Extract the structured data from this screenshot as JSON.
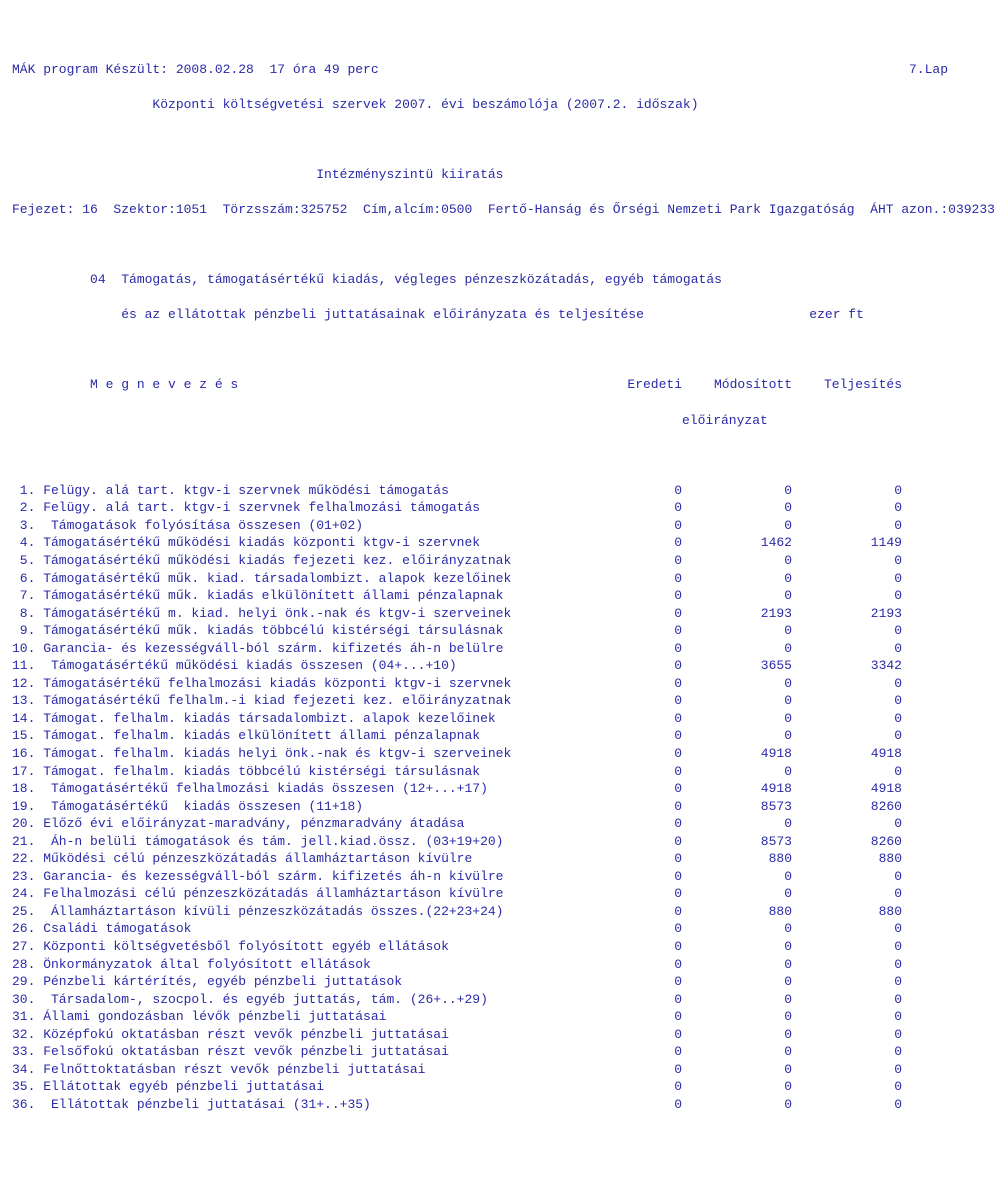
{
  "hdr": {
    "l1l": "MÁK program Készült: 2008.02.28  17 óra 49 perc",
    "l1r": "7.Lap",
    "l2": "                  Központi költségvetési szervek 2007. évi beszámolója (2007.2. időszak)",
    "l3": "                                       Intézményszintü kiiratás",
    "l4": "Fejezet: 16  Szektor:1051  Törzsszám:325752  Cím,alcím:0500  Fertő-Hanság és Őrségi Nemzeti Park Igazgatóság  ÁHT azon.:039233"
  },
  "sec": {
    "t1": "          04  Támogatás, támogatásértékű kiadás, végleges pénzeszközátadás, egyéb támogatás",
    "t2a": "              és az ellátottak pénzbeli juttatásainak előirányzata és teljesítése",
    "t2b": "ezer ft",
    "h1": "          M e g n e v e z é s",
    "h_er": "Eredeti",
    "h_mo": "Módosított",
    "h_te": "Teljesítés",
    "h_ei": "előirányzat"
  },
  "rows": [
    {
      "l": " 1. Felügy. alá tart. ktgv-i szervnek működési támogatás",
      "a": "0",
      "b": "0",
      "c": "0"
    },
    {
      "l": " 2. Felügy. alá tart. ktgv-i szervnek felhalmozási támogatás",
      "a": "0",
      "b": "0",
      "c": "0"
    },
    {
      "l": " 3.  Támogatások folyósítása összesen (01+02)",
      "a": "0",
      "b": "0",
      "c": "0"
    },
    {
      "l": " 4. Támogatásértékű működési kiadás központi ktgv-i szervnek",
      "a": "0",
      "b": "1462",
      "c": "1149"
    },
    {
      "l": " 5. Támogatásértékű működési kiadás fejezeti kez. előirányzatnak",
      "a": "0",
      "b": "0",
      "c": "0"
    },
    {
      "l": " 6. Támogatásértékű műk. kiad. társadalombizt. alapok kezelőinek",
      "a": "0",
      "b": "0",
      "c": "0"
    },
    {
      "l": " 7. Támogatásértékű műk. kiadás elkülönített állami pénzalapnak",
      "a": "0",
      "b": "0",
      "c": "0"
    },
    {
      "l": " 8. Támogatásértékű m. kiad. helyi önk.-nak és ktgv-i szerveinek",
      "a": "0",
      "b": "2193",
      "c": "2193"
    },
    {
      "l": " 9. Támogatásértékű műk. kiadás többcélú kistérségi társulásnak",
      "a": "0",
      "b": "0",
      "c": "0"
    },
    {
      "l": "10. Garancia- és kezességváll-ból szárm. kifizetés áh-n belülre",
      "a": "0",
      "b": "0",
      "c": "0"
    },
    {
      "l": "11.  Támogatásértékű működési kiadás összesen (04+...+10)",
      "a": "0",
      "b": "3655",
      "c": "3342"
    },
    {
      "l": "12. Támogatásértékű felhalmozási kiadás központi ktgv-i szervnek",
      "a": "0",
      "b": "0",
      "c": "0"
    },
    {
      "l": "13. Támogatásértékű felhalm.-i kiad fejezeti kez. előirányzatnak",
      "a": "0",
      "b": "0",
      "c": "0"
    },
    {
      "l": "14. Támogat. felhalm. kiadás társadalombizt. alapok kezelőinek",
      "a": "0",
      "b": "0",
      "c": "0"
    },
    {
      "l": "15. Támogat. felhalm. kiadás elkülönített állami pénzalapnak",
      "a": "0",
      "b": "0",
      "c": "0"
    },
    {
      "l": "16. Támogat. felhalm. kiadás helyi önk.-nak és ktgv-i szerveinek",
      "a": "0",
      "b": "4918",
      "c": "4918"
    },
    {
      "l": "17. Támogat. felhalm. kiadás többcélú kistérségi társulásnak",
      "a": "0",
      "b": "0",
      "c": "0"
    },
    {
      "l": "18.  Támogatásértékű felhalmozási kiadás összesen (12+...+17)",
      "a": "0",
      "b": "4918",
      "c": "4918"
    },
    {
      "l": "19.  Támogatásértékű  kiadás összesen (11+18)",
      "a": "0",
      "b": "8573",
      "c": "8260"
    },
    {
      "l": "20. Előző évi előirányzat-maradvány, pénzmaradvány átadása",
      "a": "0",
      "b": "0",
      "c": "0"
    },
    {
      "l": "21.  Áh-n belüli támogatások és tám. jell.kiad.össz. (03+19+20)",
      "a": "0",
      "b": "8573",
      "c": "8260"
    },
    {
      "l": "22. Működési célú pénzeszközátadás államháztartáson kívülre",
      "a": "0",
      "b": "880",
      "c": "880"
    },
    {
      "l": "23. Garancia- és kezességváll-ból szárm. kifizetés áh-n kívülre",
      "a": "0",
      "b": "0",
      "c": "0"
    },
    {
      "l": "24. Felhalmozási célú pénzeszközátadás államháztartáson kívülre",
      "a": "0",
      "b": "0",
      "c": "0"
    },
    {
      "l": "25.  Államháztartáson kívüli pénzeszközátadás összes.(22+23+24)",
      "a": "0",
      "b": "880",
      "c": "880"
    },
    {
      "l": "26. Családi támogatások",
      "a": "0",
      "b": "0",
      "c": "0"
    },
    {
      "l": "27. Központi költségvetésből folyósított egyéb ellátások",
      "a": "0",
      "b": "0",
      "c": "0"
    },
    {
      "l": "28. Önkormányzatok által folyósított ellátások",
      "a": "0",
      "b": "0",
      "c": "0"
    },
    {
      "l": "29. Pénzbeli kártérítés, egyéb pénzbeli juttatások",
      "a": "0",
      "b": "0",
      "c": "0"
    },
    {
      "l": "30.  Társadalom-, szocpol. és egyéb juttatás, tám. (26+..+29)",
      "a": "0",
      "b": "0",
      "c": "0"
    },
    {
      "l": "31. Állami gondozásban lévők pénzbeli juttatásai",
      "a": "0",
      "b": "0",
      "c": "0"
    },
    {
      "l": "32. Középfokú oktatásban részt vevők pénzbeli juttatásai",
      "a": "0",
      "b": "0",
      "c": "0"
    },
    {
      "l": "33. Felsőfokú oktatásban részt vevők pénzbeli juttatásai",
      "a": "0",
      "b": "0",
      "c": "0"
    },
    {
      "l": "34. Felnőttoktatásban részt vevők pénzbeli juttatásai",
      "a": "0",
      "b": "0",
      "c": "0"
    },
    {
      "l": "35. Ellátottak egyéb pénzbeli juttatásai",
      "a": "0",
      "b": "0",
      "c": "0"
    },
    {
      "l": "36.  Ellátottak pénzbeli juttatásai (31+..+35)",
      "a": "0",
      "b": "0",
      "c": "0"
    }
  ]
}
